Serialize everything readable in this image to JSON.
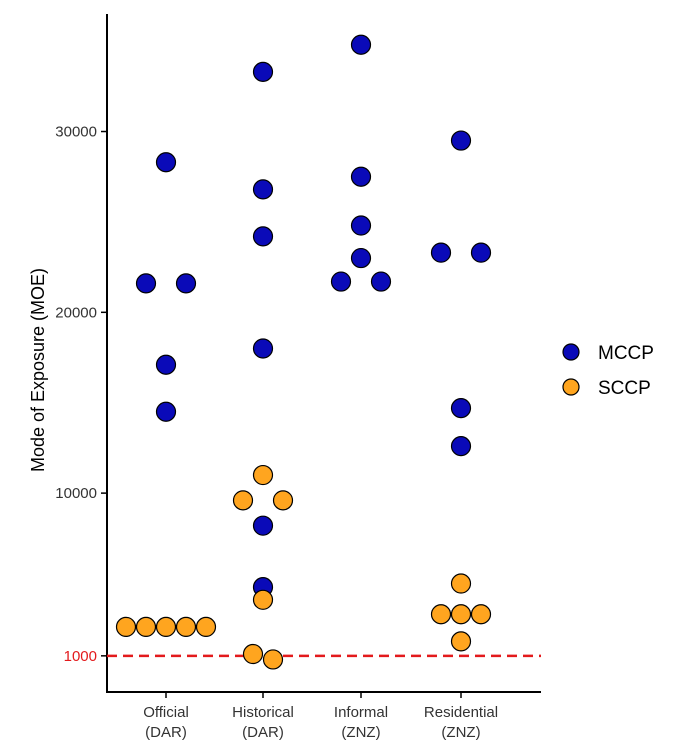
{
  "chart_data": {
    "type": "scatter",
    "ylabel": "Mode of Exposure (MOE)",
    "xlabel": "",
    "title": "",
    "ylim": [
      -1000,
      36500
    ],
    "yticks": [
      {
        "value": 1000,
        "label": "1000",
        "highlight": true
      },
      {
        "value": 10000,
        "label": "10000"
      },
      {
        "value": 20000,
        "label": "20000"
      },
      {
        "value": 30000,
        "label": "30000"
      }
    ],
    "categories": [
      {
        "line1": "Official",
        "line2": "(DAR)"
      },
      {
        "line1": "Historical",
        "line2": "(DAR)"
      },
      {
        "line1": "Informal",
        "line2": "(ZNZ)"
      },
      {
        "line1": "Residential",
        "line2": "(ZNZ)"
      }
    ],
    "reference_line": {
      "value": 1000,
      "color": "#e31a1c",
      "style": "dashed"
    },
    "legend": {
      "position": "right"
    },
    "series": [
      {
        "name": "MCCP",
        "color": "#0a0ab8",
        "points": [
          {
            "cat": 0,
            "offset": 0,
            "y": 28300
          },
          {
            "cat": 0,
            "offset": -1,
            "y": 21600
          },
          {
            "cat": 0,
            "offset": 1,
            "y": 21600
          },
          {
            "cat": 0,
            "offset": 0,
            "y": 17100
          },
          {
            "cat": 0,
            "offset": 0,
            "y": 14500
          },
          {
            "cat": 1,
            "offset": 0,
            "y": 33300
          },
          {
            "cat": 1,
            "offset": 0,
            "y": 26800
          },
          {
            "cat": 1,
            "offset": 0,
            "y": 24200
          },
          {
            "cat": 1,
            "offset": 0,
            "y": 18000
          },
          {
            "cat": 1,
            "offset": 0,
            "y": 8200
          },
          {
            "cat": 1,
            "offset": 0,
            "y": 4800
          },
          {
            "cat": 2,
            "offset": 0,
            "y": 34800
          },
          {
            "cat": 2,
            "offset": 0,
            "y": 27500
          },
          {
            "cat": 2,
            "offset": 0,
            "y": 24800
          },
          {
            "cat": 2,
            "offset": 0,
            "y": 23000
          },
          {
            "cat": 2,
            "offset": -1,
            "y": 21700
          },
          {
            "cat": 2,
            "offset": 1,
            "y": 21700
          },
          {
            "cat": 3,
            "offset": 0,
            "y": 29500
          },
          {
            "cat": 3,
            "offset": -1,
            "y": 23300
          },
          {
            "cat": 3,
            "offset": 1,
            "y": 23300
          },
          {
            "cat": 3,
            "offset": 0,
            "y": 14700
          },
          {
            "cat": 3,
            "offset": 0,
            "y": 12600
          }
        ]
      },
      {
        "name": "SCCP",
        "color": "#ffa51f",
        "points": [
          {
            "cat": 0,
            "offset": -2,
            "y": 2600
          },
          {
            "cat": 0,
            "offset": -1,
            "y": 2600
          },
          {
            "cat": 0,
            "offset": 0,
            "y": 2600
          },
          {
            "cat": 0,
            "offset": 1,
            "y": 2600
          },
          {
            "cat": 0,
            "offset": 2,
            "y": 2600
          },
          {
            "cat": 1,
            "offset": 0,
            "y": 11000
          },
          {
            "cat": 1,
            "offset": -1,
            "y": 9600
          },
          {
            "cat": 1,
            "offset": 1,
            "y": 9600
          },
          {
            "cat": 1,
            "offset": 0,
            "y": 4100
          },
          {
            "cat": 1,
            "offset": -0.5,
            "y": 1100
          },
          {
            "cat": 1,
            "offset": 0.5,
            "y": 800
          },
          {
            "cat": 3,
            "offset": 0,
            "y": 5000
          },
          {
            "cat": 3,
            "offset": -1,
            "y": 3300
          },
          {
            "cat": 3,
            "offset": 0,
            "y": 3300
          },
          {
            "cat": 3,
            "offset": 1,
            "y": 3300
          },
          {
            "cat": 3,
            "offset": 0,
            "y": 1800
          }
        ]
      }
    ]
  }
}
